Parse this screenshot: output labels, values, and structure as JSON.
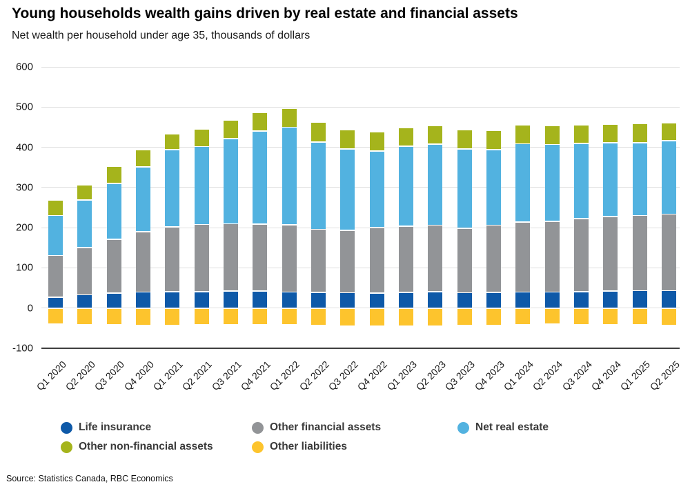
{
  "header": {
    "title": "Young households wealth gains driven by real estate and financial assets",
    "subtitle": "Net wealth per household under age 35, thousands of dollars"
  },
  "source": {
    "text": "Source: Statistics Canada, RBC Economics"
  },
  "colors": {
    "life_insurance": "#0e59a8",
    "other_financial_assets": "#929497",
    "net_real_estate": "#52b2e0",
    "other_non_financial_assets": "#a5b41c",
    "other_liabilities": "#fdc42d",
    "gridline": "#dfdfdf",
    "axis_line": "#3f3f3f"
  },
  "legend": {
    "items": [
      {
        "label": "Life insurance",
        "color": "#0e59a8"
      },
      {
        "label": "Other financial assets",
        "color": "#929497"
      },
      {
        "label": "Net real estate",
        "color": "#52b2e0"
      },
      {
        "label": "Other non-financial assets",
        "color": "#a5b41c"
      },
      {
        "label": "Other liabilities",
        "color": "#fdc42d"
      }
    ]
  },
  "chart_data": {
    "type": "bar",
    "stacked": true,
    "title": "Young households wealth gains driven by real estate and financial assets",
    "subtitle": "Net wealth per household under age 35, thousands of dollars",
    "xlabel": "",
    "ylabel": "thousands of dollars",
    "ylim": [
      -100,
      600
    ],
    "yticks": [
      600,
      500,
      400,
      300,
      200,
      100,
      0,
      -100
    ],
    "grid": true,
    "legend_position": "bottom",
    "categories": [
      "Q1 2020",
      "Q2 2020",
      "Q3 2020",
      "Q4 2020",
      "Q1 2021",
      "Q2 2021",
      "Q3 2021",
      "Q4 2021",
      "Q1 2022",
      "Q2 2022",
      "Q3 2022",
      "Q4 2022",
      "Q1 2023",
      "Q2 2023",
      "Q3 2023",
      "Q4 2023",
      "Q1 2024",
      "Q2 2024",
      "Q3 2024",
      "Q4 2024",
      "Q1 2025",
      "Q2 2025"
    ],
    "series": [
      {
        "name": "Life insurance",
        "key": "life-insurance",
        "color": "#0e59a8",
        "values": [
          27,
          33,
          37,
          40,
          41,
          41,
          42,
          42,
          40,
          39,
          38,
          37,
          39,
          41,
          38,
          39,
          40,
          40,
          41,
          42,
          43,
          43
        ]
      },
      {
        "name": "Other financial assets",
        "key": "other-financial-assets",
        "color": "#929497",
        "values": [
          104,
          117,
          134,
          150,
          161,
          167,
          168,
          167,
          167,
          157,
          155,
          163,
          165,
          165,
          160,
          167,
          174,
          176,
          182,
          186,
          187,
          191
        ]
      },
      {
        "name": "Net real estate",
        "key": "net-real-estate",
        "color": "#52b2e0",
        "values": [
          99,
          119,
          139,
          161,
          192,
          194,
          212,
          231,
          243,
          217,
          203,
          191,
          199,
          202,
          198,
          188,
          195,
          191,
          187,
          183,
          181,
          182
        ]
      },
      {
        "name": "Other non-financial assets",
        "key": "other-non-financial-assets",
        "color": "#a5b41c",
        "values": [
          38,
          38,
          42,
          42,
          39,
          43,
          46,
          47,
          47,
          50,
          47,
          47,
          46,
          46,
          47,
          48,
          47,
          47,
          46,
          46,
          48,
          45
        ]
      },
      {
        "name": "Other liabilities",
        "key": "other-liabilities",
        "color": "#fdc42d",
        "values": [
          -40,
          -41,
          -42,
          -43,
          -43,
          -42,
          -41,
          -41,
          -42,
          -43,
          -44,
          -44,
          -44,
          -44,
          -43,
          -43,
          -41,
          -40,
          -41,
          -42,
          -42,
          -43
        ]
      }
    ]
  }
}
